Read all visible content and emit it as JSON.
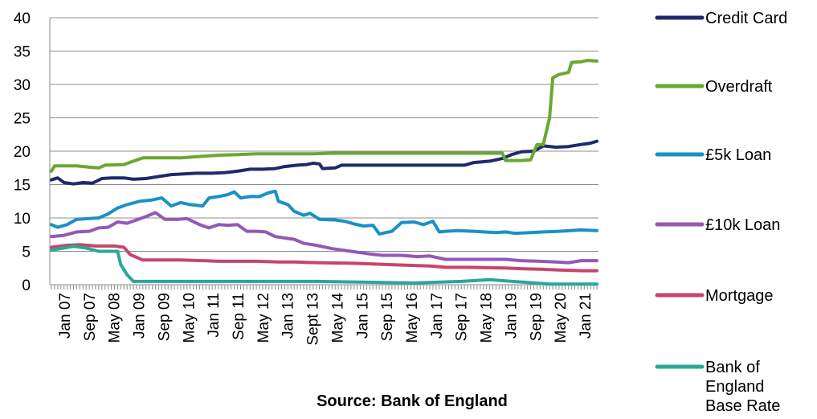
{
  "chart_data": {
    "type": "line",
    "caption": "Source: Bank of England",
    "ylim": [
      0,
      40
    ],
    "y_ticks": [
      0,
      5,
      10,
      15,
      20,
      25,
      30,
      35,
      40
    ],
    "x_tick_labels": [
      "Jan 07",
      "Sep 07",
      "May 08",
      "Jan 09",
      "Sep 09",
      "May 10",
      "Jan 11",
      "Sep 11",
      "May 12",
      "Jan 13",
      "Sept 13",
      "May 14",
      "Jan 15",
      "Sep 15",
      "May 16",
      "Jan 17",
      "Sep 17",
      "May 18",
      "Jan 19",
      "Sep 19",
      "May 20",
      "Jan 21"
    ],
    "x_range": [
      "2007-01",
      "2021-06"
    ],
    "grid": true,
    "legend_position": "right",
    "series": [
      {
        "name": "Credit Card",
        "color": "#1f2a6b",
        "values": [
          [
            "2007-01",
            15.7
          ],
          [
            "2007-03",
            16.0
          ],
          [
            "2007-05",
            15.3
          ],
          [
            "2007-08",
            15.1
          ],
          [
            "2007-11",
            15.3
          ],
          [
            "2008-02",
            15.2
          ],
          [
            "2008-05",
            15.9
          ],
          [
            "2008-08",
            16.0
          ],
          [
            "2008-12",
            16.0
          ],
          [
            "2009-03",
            15.8
          ],
          [
            "2009-07",
            15.9
          ],
          [
            "2009-11",
            16.2
          ],
          [
            "2010-03",
            16.5
          ],
          [
            "2010-07",
            16.6
          ],
          [
            "2010-11",
            16.7
          ],
          [
            "2011-04",
            16.7
          ],
          [
            "2011-08",
            16.8
          ],
          [
            "2011-12",
            17.0
          ],
          [
            "2012-04",
            17.3
          ],
          [
            "2012-08",
            17.3
          ],
          [
            "2012-12",
            17.4
          ],
          [
            "2013-03",
            17.7
          ],
          [
            "2013-07",
            17.9
          ],
          [
            "2013-10",
            18.0
          ],
          [
            "2013-12",
            18.2
          ],
          [
            "2014-02",
            18.1
          ],
          [
            "2014-03",
            17.4
          ],
          [
            "2014-07",
            17.5
          ],
          [
            "2014-09",
            17.9
          ],
          [
            "2015-01",
            17.9
          ],
          [
            "2015-06",
            17.9
          ],
          [
            "2016-01",
            17.9
          ],
          [
            "2016-06",
            17.9
          ],
          [
            "2017-01",
            17.9
          ],
          [
            "2017-06",
            17.9
          ],
          [
            "2017-12",
            17.9
          ],
          [
            "2018-03",
            18.3
          ],
          [
            "2018-08",
            18.5
          ],
          [
            "2018-12",
            18.9
          ],
          [
            "2019-03",
            19.5
          ],
          [
            "2019-06",
            19.9
          ],
          [
            "2019-10",
            20.0
          ],
          [
            "2020-01",
            20.8
          ],
          [
            "2020-05",
            20.6
          ],
          [
            "2020-09",
            20.7
          ],
          [
            "2021-01",
            21.0
          ],
          [
            "2021-04",
            21.2
          ],
          [
            "2021-06",
            21.5
          ]
        ]
      },
      {
        "name": "Overdraft",
        "color": "#6aa832",
        "values": [
          [
            "2007-01",
            17.0
          ],
          [
            "2007-02",
            17.8
          ],
          [
            "2007-06",
            17.8
          ],
          [
            "2007-09",
            17.8
          ],
          [
            "2008-01",
            17.6
          ],
          [
            "2008-04",
            17.5
          ],
          [
            "2008-06",
            17.9
          ],
          [
            "2008-12",
            18.0
          ],
          [
            "2009-03",
            18.5
          ],
          [
            "2009-06",
            19.0
          ],
          [
            "2009-12",
            19.0
          ],
          [
            "2010-06",
            19.0
          ],
          [
            "2010-12",
            19.2
          ],
          [
            "2011-06",
            19.4
          ],
          [
            "2011-12",
            19.5
          ],
          [
            "2012-06",
            19.6
          ],
          [
            "2012-12",
            19.6
          ],
          [
            "2013-06",
            19.6
          ],
          [
            "2013-12",
            19.6
          ],
          [
            "2014-06",
            19.7
          ],
          [
            "2015-06",
            19.7
          ],
          [
            "2016-06",
            19.7
          ],
          [
            "2017-06",
            19.7
          ],
          [
            "2018-06",
            19.7
          ],
          [
            "2018-12",
            19.7
          ],
          [
            "2019-01",
            18.6
          ],
          [
            "2019-06",
            18.6
          ],
          [
            "2019-09",
            18.7
          ],
          [
            "2019-11",
            21.0
          ],
          [
            "2020-01",
            21.0
          ],
          [
            "2020-03",
            25.0
          ],
          [
            "2020-04",
            31.0
          ],
          [
            "2020-06",
            31.5
          ],
          [
            "2020-09",
            31.8
          ],
          [
            "2020-10",
            33.3
          ],
          [
            "2021-01",
            33.4
          ],
          [
            "2021-03",
            33.6
          ],
          [
            "2021-06",
            33.5
          ]
        ]
      },
      {
        "name": "£5k Loan",
        "color": "#1a90c8",
        "values": [
          [
            "2007-01",
            9.0
          ],
          [
            "2007-03",
            8.6
          ],
          [
            "2007-06",
            9.0
          ],
          [
            "2007-09",
            9.8
          ],
          [
            "2008-01",
            9.9
          ],
          [
            "2008-04",
            10.0
          ],
          [
            "2008-07",
            10.6
          ],
          [
            "2008-10",
            11.5
          ],
          [
            "2009-01",
            12.0
          ],
          [
            "2009-05",
            12.5
          ],
          [
            "2009-09",
            12.7
          ],
          [
            "2009-12",
            13.0
          ],
          [
            "2010-03",
            11.8
          ],
          [
            "2010-06",
            12.3
          ],
          [
            "2010-09",
            12.0
          ],
          [
            "2011-01",
            11.8
          ],
          [
            "2011-03",
            13.0
          ],
          [
            "2011-06",
            13.2
          ],
          [
            "2011-09",
            13.5
          ],
          [
            "2011-11",
            13.9
          ],
          [
            "2012-01",
            13.0
          ],
          [
            "2012-04",
            13.2
          ],
          [
            "2012-07",
            13.2
          ],
          [
            "2012-10",
            13.8
          ],
          [
            "2012-12",
            14.0
          ],
          [
            "2013-01",
            12.5
          ],
          [
            "2013-04",
            12.0
          ],
          [
            "2013-06",
            11.0
          ],
          [
            "2013-09",
            10.4
          ],
          [
            "2013-11",
            10.7
          ],
          [
            "2014-02",
            9.8
          ],
          [
            "2014-07",
            9.7
          ],
          [
            "2014-10",
            9.5
          ],
          [
            "2015-01",
            9.1
          ],
          [
            "2015-04",
            8.8
          ],
          [
            "2015-07",
            8.9
          ],
          [
            "2015-09",
            7.6
          ],
          [
            "2016-01",
            8.0
          ],
          [
            "2016-04",
            9.3
          ],
          [
            "2016-08",
            9.4
          ],
          [
            "2016-11",
            9.0
          ],
          [
            "2017-02",
            9.5
          ],
          [
            "2017-04",
            7.9
          ],
          [
            "2017-06",
            8.0
          ],
          [
            "2017-10",
            8.1
          ],
          [
            "2018-03",
            8.0
          ],
          [
            "2018-06",
            7.9
          ],
          [
            "2018-10",
            7.8
          ],
          [
            "2019-01",
            7.9
          ],
          [
            "2019-04",
            7.7
          ],
          [
            "2019-09",
            7.8
          ],
          [
            "2020-01",
            7.9
          ],
          [
            "2020-06",
            8.0
          ],
          [
            "2021-01",
            8.2
          ],
          [
            "2021-06",
            8.1
          ]
        ]
      },
      {
        "name": "£10k Loan",
        "color": "#9458b8",
        "values": [
          [
            "2007-01",
            7.2
          ],
          [
            "2007-05",
            7.4
          ],
          [
            "2007-09",
            7.9
          ],
          [
            "2008-01",
            8.0
          ],
          [
            "2008-04",
            8.5
          ],
          [
            "2008-07",
            8.6
          ],
          [
            "2008-10",
            9.4
          ],
          [
            "2009-01",
            9.2
          ],
          [
            "2009-04",
            9.7
          ],
          [
            "2009-07",
            10.2
          ],
          [
            "2009-10",
            10.8
          ],
          [
            "2010-01",
            9.8
          ],
          [
            "2010-05",
            9.8
          ],
          [
            "2010-08",
            9.9
          ],
          [
            "2010-12",
            9.0
          ],
          [
            "2011-03",
            8.5
          ],
          [
            "2011-06",
            9.0
          ],
          [
            "2011-09",
            8.9
          ],
          [
            "2011-12",
            9.0
          ],
          [
            "2012-03",
            8.0
          ],
          [
            "2012-06",
            8.0
          ],
          [
            "2012-09",
            7.9
          ],
          [
            "2012-12",
            7.2
          ],
          [
            "2013-06",
            6.8
          ],
          [
            "2013-09",
            6.2
          ],
          [
            "2014-01",
            5.9
          ],
          [
            "2014-06",
            5.4
          ],
          [
            "2014-12",
            5.0
          ],
          [
            "2015-06",
            4.6
          ],
          [
            "2015-10",
            4.4
          ],
          [
            "2016-04",
            4.4
          ],
          [
            "2016-09",
            4.2
          ],
          [
            "2017-01",
            4.3
          ],
          [
            "2017-06",
            3.8
          ],
          [
            "2017-10",
            3.8
          ],
          [
            "2018-06",
            3.8
          ],
          [
            "2019-01",
            3.8
          ],
          [
            "2019-06",
            3.6
          ],
          [
            "2019-12",
            3.5
          ],
          [
            "2020-05",
            3.4
          ],
          [
            "2020-09",
            3.3
          ],
          [
            "2021-01",
            3.6
          ],
          [
            "2021-06",
            3.6
          ]
        ]
      },
      {
        "name": "Mortgage",
        "color": "#c8456a",
        "values": [
          [
            "2007-01",
            5.6
          ],
          [
            "2007-06",
            5.9
          ],
          [
            "2007-10",
            6.0
          ],
          [
            "2008-03",
            5.8
          ],
          [
            "2008-09",
            5.8
          ],
          [
            "2008-12",
            5.6
          ],
          [
            "2009-02",
            4.5
          ],
          [
            "2009-06",
            3.7
          ],
          [
            "2010-01",
            3.7
          ],
          [
            "2010-06",
            3.7
          ],
          [
            "2011-01",
            3.6
          ],
          [
            "2011-06",
            3.5
          ],
          [
            "2012-01",
            3.5
          ],
          [
            "2012-06",
            3.5
          ],
          [
            "2013-01",
            3.4
          ],
          [
            "2013-06",
            3.4
          ],
          [
            "2014-01",
            3.3
          ],
          [
            "2015-01",
            3.2
          ],
          [
            "2016-01",
            3.0
          ],
          [
            "2017-01",
            2.8
          ],
          [
            "2017-06",
            2.6
          ],
          [
            "2018-01",
            2.6
          ],
          [
            "2019-01",
            2.5
          ],
          [
            "2019-06",
            2.4
          ],
          [
            "2020-01",
            2.3
          ],
          [
            "2020-06",
            2.2
          ],
          [
            "2021-01",
            2.1
          ],
          [
            "2021-06",
            2.1
          ]
        ]
      },
      {
        "name": "Bank of England Base Rate",
        "color": "#2aa897",
        "values": [
          [
            "2007-01",
            5.2
          ],
          [
            "2007-05",
            5.5
          ],
          [
            "2007-08",
            5.75
          ],
          [
            "2007-12",
            5.5
          ],
          [
            "2008-02",
            5.25
          ],
          [
            "2008-04",
            5.0
          ],
          [
            "2008-10",
            5.0
          ],
          [
            "2008-11",
            3.0
          ],
          [
            "2009-01",
            1.5
          ],
          [
            "2009-03",
            0.5
          ],
          [
            "2009-06",
            0.5
          ],
          [
            "2012-01",
            0.5
          ],
          [
            "2014-01",
            0.5
          ],
          [
            "2016-08",
            0.25
          ],
          [
            "2017-11",
            0.5
          ],
          [
            "2018-08",
            0.75
          ],
          [
            "2020-03",
            0.1
          ],
          [
            "2021-06",
            0.1
          ]
        ]
      }
    ]
  }
}
